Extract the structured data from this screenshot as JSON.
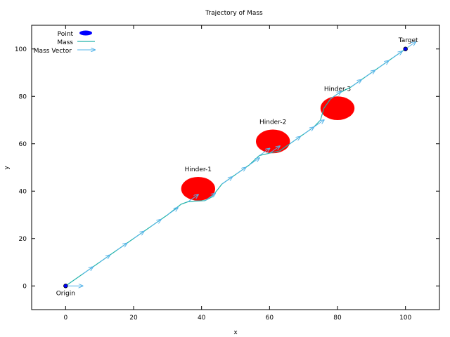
{
  "chart_data": {
    "type": "line",
    "title": "Trajectory of Mass",
    "xlabel": "x",
    "ylabel": "y",
    "xlim": [
      -10,
      110
    ],
    "ylim": [
      -10,
      110
    ],
    "xticks": [
      0,
      20,
      40,
      60,
      80,
      100
    ],
    "yticks": [
      0,
      20,
      40,
      60,
      80,
      100
    ],
    "grid": false,
    "legend": {
      "placement": "top-left",
      "entries": [
        {
          "name": "Point",
          "color": "#0000ff"
        },
        {
          "name": "Mass",
          "color": "#20b2aa"
        },
        {
          "name": "Mass Vector",
          "color": "#56b4e9"
        }
      ]
    },
    "points": [
      {
        "name": "Origin",
        "x": 0,
        "y": 0
      },
      {
        "name": "Target",
        "x": 100,
        "y": 100
      }
    ],
    "hinders": [
      {
        "name": "Hinder-1",
        "x": 39,
        "y": 41,
        "rx": 5,
        "ry": 5,
        "color": "#ff0000"
      },
      {
        "name": "Hinder-2",
        "x": 61,
        "y": 61,
        "rx": 5,
        "ry": 5,
        "color": "#ff0000"
      },
      {
        "name": "Hinder-3",
        "x": 80,
        "y": 75,
        "rx": 5,
        "ry": 5,
        "color": "#ff0000"
      }
    ],
    "mass_trajectory": [
      [
        0,
        0
      ],
      [
        5,
        5
      ],
      [
        10,
        10
      ],
      [
        15,
        15
      ],
      [
        20,
        20
      ],
      [
        25,
        25
      ],
      [
        30,
        30
      ],
      [
        34,
        34.5
      ],
      [
        36,
        35.5
      ],
      [
        38,
        35.8
      ],
      [
        41,
        36
      ],
      [
        43,
        37.5
      ],
      [
        46,
        43
      ],
      [
        50,
        47
      ],
      [
        54,
        51
      ],
      [
        57,
        55
      ],
      [
        60,
        56
      ],
      [
        63,
        57
      ],
      [
        66,
        60
      ],
      [
        70,
        64
      ],
      [
        73,
        67
      ],
      [
        75,
        70
      ],
      [
        76,
        75
      ],
      [
        78,
        79
      ],
      [
        80,
        81
      ],
      [
        84,
        84
      ],
      [
        88,
        88
      ],
      [
        92,
        92
      ],
      [
        96,
        96
      ],
      [
        100,
        100
      ]
    ],
    "mass_vectors": [
      {
        "x": 0,
        "y": 0,
        "dx": 5,
        "dy": 0
      },
      {
        "x": 5,
        "y": 5,
        "dx": 3,
        "dy": 3
      },
      {
        "x": 10,
        "y": 10,
        "dx": 3,
        "dy": 3
      },
      {
        "x": 15,
        "y": 15,
        "dx": 3,
        "dy": 3
      },
      {
        "x": 20,
        "y": 20,
        "dx": 3,
        "dy": 3
      },
      {
        "x": 25,
        "y": 25,
        "dx": 3,
        "dy": 3
      },
      {
        "x": 30,
        "y": 30,
        "dx": 3,
        "dy": 3
      },
      {
        "x": 36,
        "y": 35.5,
        "dx": 3,
        "dy": 3
      },
      {
        "x": 41,
        "y": 36,
        "dx": 3,
        "dy": 3
      },
      {
        "x": 46,
        "y": 43,
        "dx": 3,
        "dy": 3
      },
      {
        "x": 50,
        "y": 47,
        "dx": 3,
        "dy": 3
      },
      {
        "x": 54,
        "y": 51,
        "dx": 3,
        "dy": 3
      },
      {
        "x": 57,
        "y": 55,
        "dx": 3,
        "dy": 3
      },
      {
        "x": 60,
        "y": 56,
        "dx": 3,
        "dy": 3
      },
      {
        "x": 66,
        "y": 60,
        "dx": 3,
        "dy": 3
      },
      {
        "x": 70,
        "y": 64,
        "dx": 3,
        "dy": 3
      },
      {
        "x": 73,
        "y": 67,
        "dx": 3,
        "dy": 3
      },
      {
        "x": 78,
        "y": 79,
        "dx": 3,
        "dy": 3
      },
      {
        "x": 84,
        "y": 84,
        "dx": 3,
        "dy": 3
      },
      {
        "x": 88,
        "y": 88,
        "dx": 3,
        "dy": 3
      },
      {
        "x": 92,
        "y": 92,
        "dx": 3,
        "dy": 3
      },
      {
        "x": 96,
        "y": 96,
        "dx": 3,
        "dy": 3
      },
      {
        "x": 100,
        "y": 100,
        "dx": 3,
        "dy": 3
      }
    ]
  }
}
